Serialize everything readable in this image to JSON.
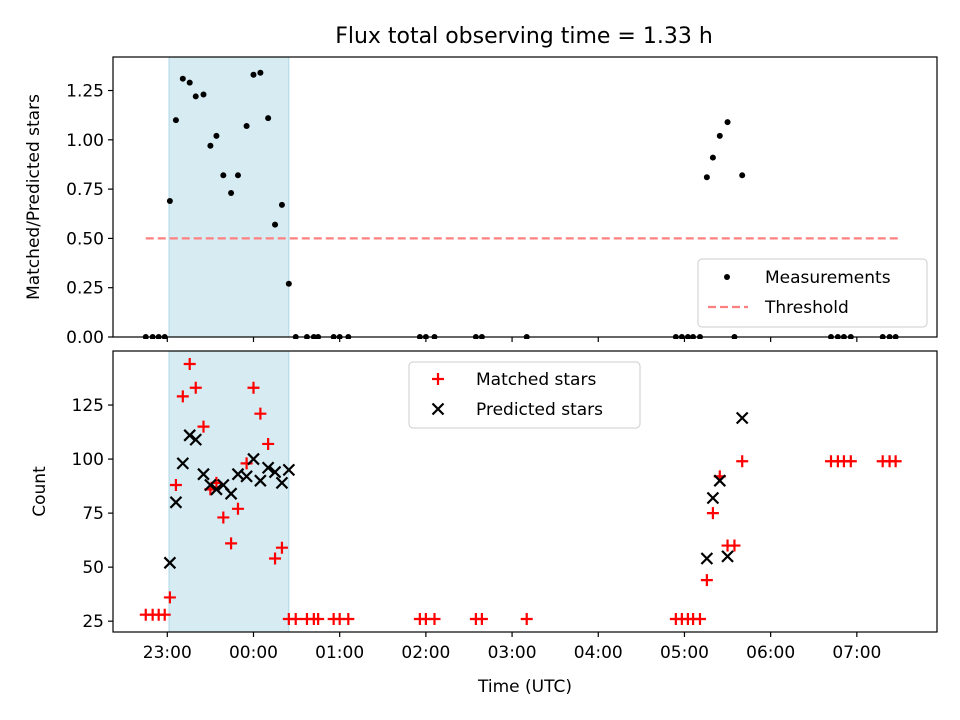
{
  "title": "Flux total observing time = 1.33 h",
  "colors": {
    "shade": "#add8e6",
    "measurement": "#000000",
    "threshold": "#ff8080",
    "matched": "#ff0000",
    "predicted": "#000000"
  },
  "chart_data": [
    {
      "type": "scatter",
      "ylabel": "Matched/Predicted stars",
      "xlim": [
        -1.63,
        7.93
      ],
      "ylim": [
        0,
        1.42
      ],
      "yticks": [
        0,
        0.25,
        0.5,
        0.75,
        1.0,
        1.25
      ],
      "ytick_labels": [
        "0.00",
        "0.25",
        "0.50",
        "0.75",
        "1.00",
        "1.25"
      ],
      "shaded_interval": [
        -0.98,
        0.41
      ],
      "legend": {
        "position": "lower-right",
        "entries": [
          "Measurements",
          "Threshold"
        ]
      },
      "threshold": {
        "name": "Threshold",
        "y": 0.5,
        "x": [
          -1.25,
          7.5
        ]
      },
      "series": [
        {
          "name": "Measurements",
          "x": [
            -1.25,
            -1.17,
            -1.1,
            -1.03,
            -0.97,
            -0.9,
            -0.82,
            -0.74,
            -0.67,
            -0.58,
            -0.5,
            -0.43,
            -0.35,
            -0.26,
            -0.18,
            -0.08,
            0.0,
            0.08,
            0.17,
            0.25,
            0.33,
            0.41,
            0.49,
            0.62,
            0.7,
            0.75,
            0.93,
            1.0,
            1.1,
            1.93,
            2.0,
            2.1,
            2.58,
            2.65,
            3.17,
            4.9,
            4.97,
            5.04,
            5.1,
            5.18,
            5.26,
            5.33,
            5.41,
            5.5,
            5.58,
            5.67,
            6.7,
            6.78,
            6.85,
            6.93,
            7.3,
            7.38,
            7.45
          ],
          "y": [
            0,
            0,
            0,
            0,
            0.69,
            1.1,
            1.31,
            1.29,
            1.22,
            1.23,
            0.97,
            1.02,
            0.82,
            0.73,
            0.82,
            1.07,
            1.33,
            1.34,
            1.11,
            0.57,
            0.67,
            0.27,
            0,
            0,
            0,
            0,
            0,
            0,
            0,
            0,
            0,
            0,
            0,
            0,
            0,
            0,
            0,
            0,
            0,
            0,
            0.81,
            0.91,
            1.02,
            1.09,
            0,
            0.82,
            0,
            0,
            0,
            0,
            0,
            0,
            0
          ]
        }
      ]
    },
    {
      "type": "scatter",
      "xlabel": "Time (UTC)",
      "ylabel": "Count",
      "xlim": [
        -1.63,
        7.93
      ],
      "ylim": [
        20,
        150
      ],
      "yticks": [
        25,
        50,
        75,
        100,
        125
      ],
      "ytick_labels": [
        "25",
        "50",
        "75",
        "100",
        "125"
      ],
      "xticks": [
        -1,
        0,
        1,
        2,
        3,
        4,
        5,
        6,
        7
      ],
      "xtick_labels": [
        "23:00",
        "00:00",
        "01:00",
        "02:00",
        "03:00",
        "04:00",
        "05:00",
        "06:00",
        "07:00"
      ],
      "shaded_interval": [
        -0.98,
        0.41
      ],
      "legend": {
        "position": "upper-center",
        "entries": [
          "Matched stars",
          "Predicted stars"
        ]
      },
      "series": [
        {
          "name": "Matched stars",
          "x": [
            -1.25,
            -1.17,
            -1.1,
            -1.03,
            -0.97,
            -0.9,
            -0.82,
            -0.74,
            -0.67,
            -0.58,
            -0.5,
            -0.43,
            -0.35,
            -0.26,
            -0.18,
            -0.08,
            0.0,
            0.08,
            0.17,
            0.25,
            0.33,
            0.41,
            0.49,
            0.62,
            0.7,
            0.75,
            0.93,
            1.0,
            1.1,
            1.93,
            2.0,
            2.1,
            2.58,
            2.65,
            3.17,
            4.9,
            4.97,
            5.04,
            5.1,
            5.18,
            5.26,
            5.33,
            5.41,
            5.5,
            5.58,
            5.67,
            6.7,
            6.78,
            6.85,
            6.93,
            7.3,
            7.38,
            7.45
          ],
          "y": [
            28,
            28,
            28,
            28,
            36,
            88,
            129,
            144,
            133,
            115,
            86,
            89,
            73,
            61,
            77,
            98,
            133,
            121,
            107,
            54,
            59,
            26,
            26,
            26,
            26,
            26,
            26,
            26,
            26,
            26,
            26,
            26,
            26,
            26,
            26,
            26,
            26,
            26,
            26,
            26,
            44,
            75,
            92,
            60,
            60,
            99,
            99,
            99,
            99,
            99,
            99,
            99,
            99
          ]
        },
        {
          "name": "Predicted stars",
          "x": [
            -0.97,
            -0.9,
            -0.82,
            -0.74,
            -0.67,
            -0.58,
            -0.5,
            -0.43,
            -0.35,
            -0.26,
            -0.18,
            -0.08,
            0.0,
            0.08,
            0.17,
            0.25,
            0.33,
            0.41,
            5.26,
            5.33,
            5.41,
            5.5,
            5.67
          ],
          "y": [
            52,
            80,
            98,
            111,
            109,
            93,
            88,
            86,
            88,
            84,
            93,
            92,
            100,
            90,
            96,
            94,
            89,
            95,
            54,
            82,
            90,
            55,
            119
          ]
        }
      ]
    }
  ]
}
